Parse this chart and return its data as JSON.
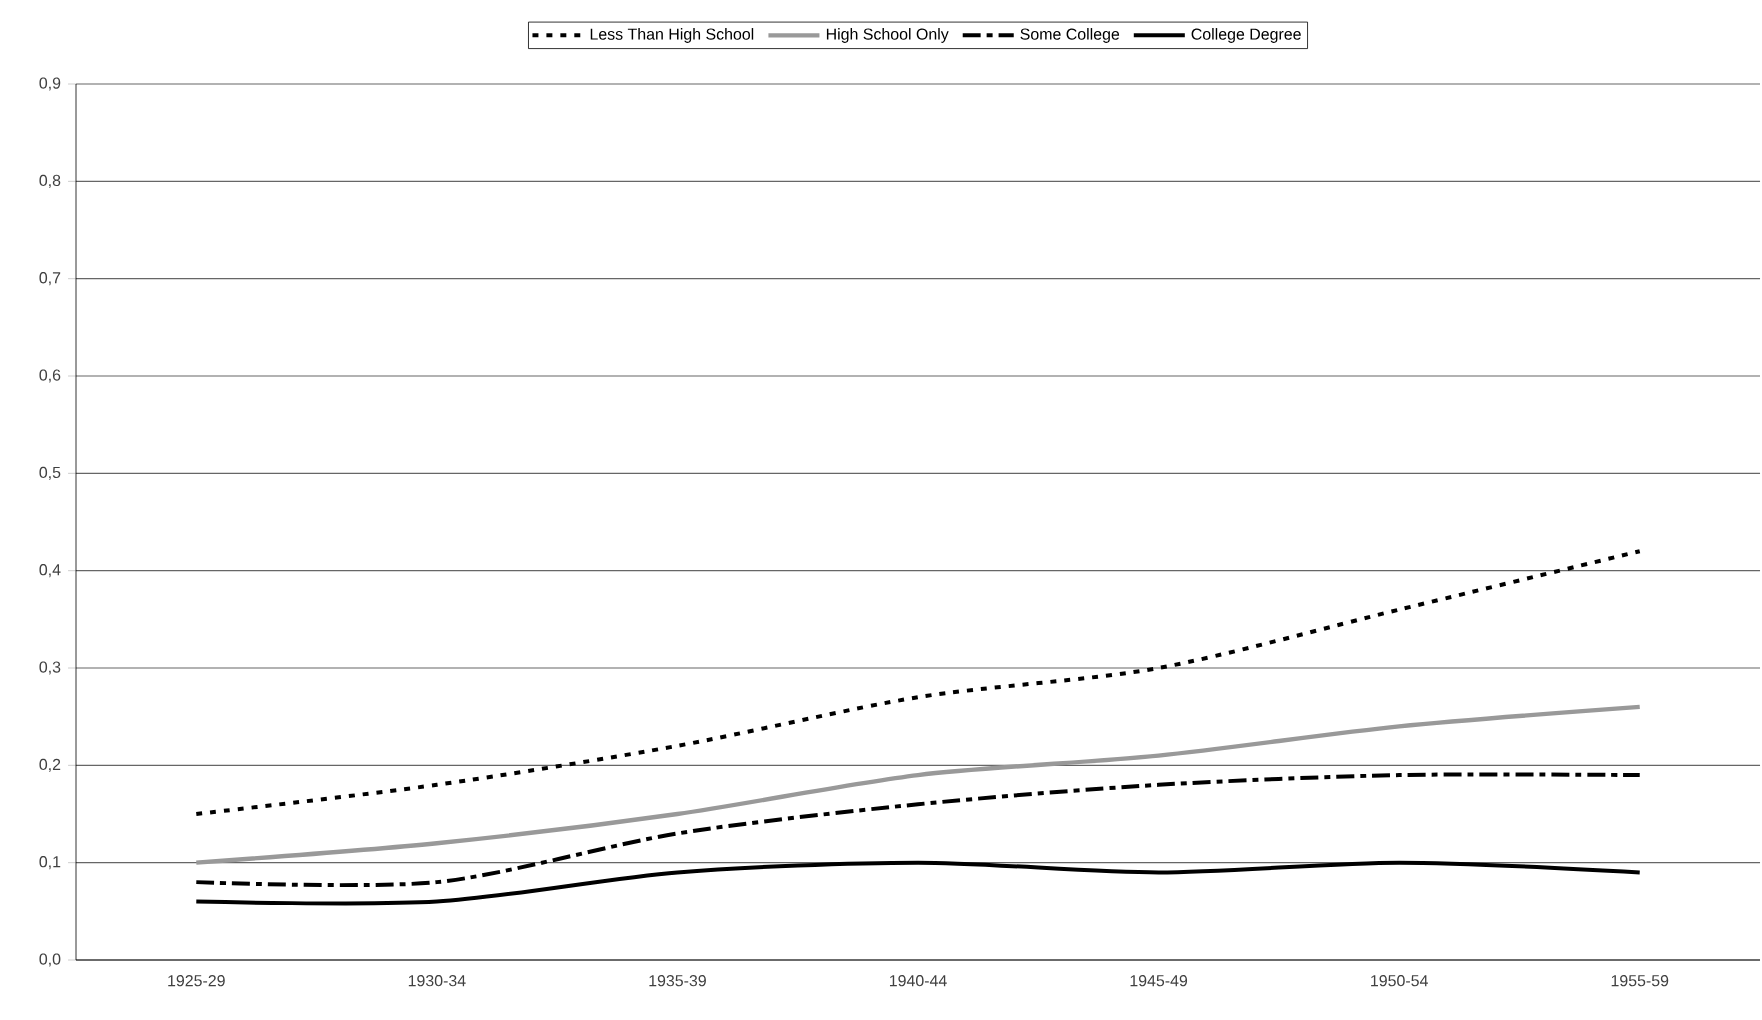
{
  "chart_data": {
    "type": "line",
    "categories": [
      "1925-29",
      "1930-34",
      "1935-39",
      "1940-44",
      "1945-49",
      "1950-54",
      "1955-59"
    ],
    "series": [
      {
        "name": "Less Than High School",
        "color": "#000000",
        "line_style": "dotted",
        "values": [
          0.15,
          0.18,
          0.22,
          0.27,
          0.3,
          0.36,
          0.42
        ]
      },
      {
        "name": "High School Only",
        "color": "#999999",
        "line_style": "solid",
        "values": [
          0.1,
          0.12,
          0.15,
          0.19,
          0.21,
          0.24,
          0.26
        ]
      },
      {
        "name": "Some College",
        "color": "#000000",
        "line_style": "dashed",
        "values": [
          0.08,
          0.08,
          0.13,
          0.16,
          0.18,
          0.19,
          0.19
        ]
      },
      {
        "name": "College Degree",
        "color": "#000000",
        "line_style": "solid",
        "values": [
          0.06,
          0.06,
          0.09,
          0.1,
          0.09,
          0.1,
          0.09
        ]
      }
    ],
    "ylim": [
      0,
      0.9
    ],
    "yticks": [
      {
        "value": 0,
        "label": "0,0"
      },
      {
        "value": 0.1,
        "label": "0,1"
      },
      {
        "value": 0.2,
        "label": "0,2"
      },
      {
        "value": 0.3,
        "label": "0,3"
      },
      {
        "value": 0.4,
        "label": "0,4"
      },
      {
        "value": 0.5,
        "label": "0,5"
      },
      {
        "value": 0.6,
        "label": "0,6"
      },
      {
        "value": 0.7,
        "label": "0,7"
      },
      {
        "value": 0.8,
        "label": "0,8"
      },
      {
        "value": 0.9,
        "label": "0,9"
      }
    ],
    "grid": "y",
    "legend": "top",
    "marker": "none"
  }
}
